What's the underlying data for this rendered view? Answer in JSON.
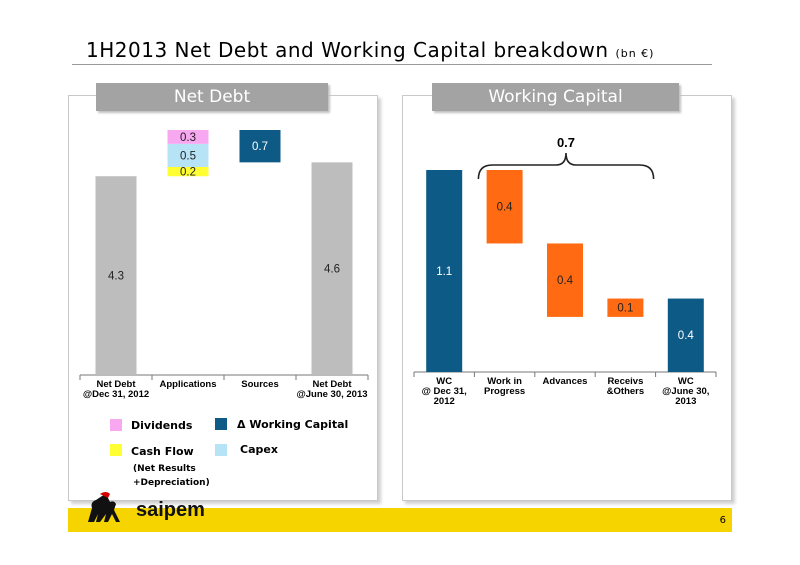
{
  "title": {
    "main": "1H2013 Net Debt and Working Capital breakdown",
    "unit": "(bn €)"
  },
  "page_number": "6",
  "logo_text": "saipem",
  "colors": {
    "gray": "#bdbdbd",
    "blue": "#0d5a86",
    "orange": "#ff6a13",
    "pink": "#f7a8f0",
    "light_blue": "#b7e3f7",
    "yellow": "#ffff33",
    "footer": "#f5d400"
  },
  "panels": {
    "left_header": "Net Debt",
    "right_header": "Working Capital"
  },
  "legend": {
    "dividends": "Dividends",
    "delta_wc": "Δ Working Capital",
    "cash_flow": "Cash Flow",
    "capex": "Capex",
    "cash_flow_note_1": "(Net Results",
    "cash_flow_note_2": "+Depreciation)"
  },
  "chart_data": [
    {
      "type": "bar",
      "title": "Net Debt",
      "categories": [
        {
          "label": [
            "Net Debt",
            "@Dec 31, 2012"
          ]
        },
        {
          "label": [
            "Applications"
          ]
        },
        {
          "label": [
            "Sources"
          ]
        },
        {
          "label": [
            "Net Debt",
            "@June 30, 2013"
          ]
        }
      ],
      "bars": [
        {
          "category": 0,
          "bottom": 0,
          "top": 4.3,
          "value": "4.3",
          "color": "#bdbdbd",
          "label_pos": "mid"
        },
        {
          "category": 1,
          "bottom": 4.3,
          "top": 4.5,
          "value": "0.2",
          "color": "#ffff33",
          "label_pos": "mid",
          "series": "Cash Flow"
        },
        {
          "category": 1,
          "bottom": 4.5,
          "top": 5.0,
          "value": "0.5",
          "color": "#b7e3f7",
          "label_pos": "mid",
          "series": "Capex"
        },
        {
          "category": 1,
          "bottom": 5.0,
          "top": 5.3,
          "value": "0.3",
          "color": "#f7a8f0",
          "label_pos": "mid",
          "series": "Dividends"
        },
        {
          "category": 2,
          "bottom": 4.6,
          "top": 5.3,
          "value": "0.7",
          "color": "#0d5a86",
          "label_pos": "mid",
          "series": "Δ Working Capital"
        },
        {
          "category": 3,
          "bottom": 0,
          "top": 4.6,
          "value": "4.6",
          "color": "#bdbdbd",
          "label_pos": "mid"
        }
      ],
      "ylim": [
        0,
        5.3
      ]
    },
    {
      "type": "bar",
      "title": "Working Capital",
      "categories": [
        {
          "label": [
            "WC",
            "@ Dec 31,",
            "2012"
          ]
        },
        {
          "label": [
            "Work in",
            "Progress"
          ]
        },
        {
          "label": [
            "Advances"
          ]
        },
        {
          "label": [
            "Receivs",
            "&Others"
          ]
        },
        {
          "label": [
            "WC",
            "@June 30,",
            "2013"
          ]
        }
      ],
      "bars": [
        {
          "category": 0,
          "bottom": 0,
          "top": 1.1,
          "value": "1.1",
          "color": "#0d5a86",
          "label_pos": "mid"
        },
        {
          "category": 1,
          "bottom": 0.7,
          "top": 1.1,
          "value": "0.4",
          "color": "#ff6a13",
          "label_pos": "mid"
        },
        {
          "category": 2,
          "bottom": 0.3,
          "top": 0.7,
          "value": "0.4",
          "color": "#ff6a13",
          "label_pos": "mid"
        },
        {
          "category": 3,
          "bottom": 0.3,
          "top": 0.4,
          "value": "0.1",
          "color": "#ff6a13",
          "label_pos": "mid"
        },
        {
          "category": 4,
          "bottom": 0,
          "top": 0.4,
          "value": "0.4",
          "color": "#0d5a86",
          "label_pos": "upper"
        }
      ],
      "annotation": {
        "text": "0.7",
        "span_categories": [
          1,
          4
        ]
      },
      "ylim": [
        0,
        1.1
      ]
    }
  ]
}
